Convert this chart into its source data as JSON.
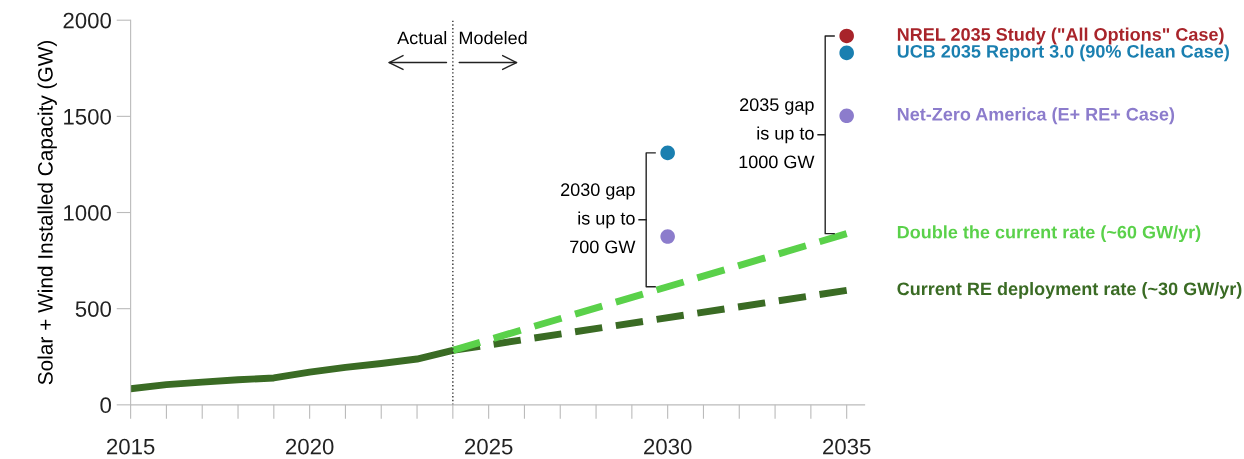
{
  "chart_data": {
    "type": "line",
    "ylabel": "Solar + Wind Installed Capacity (GW)",
    "xlim": [
      2015,
      2035.5
    ],
    "ylim": [
      0,
      2000
    ],
    "xticks": [
      2015,
      {
        "value": 2016,
        "label": null
      },
      {
        "value": 2017,
        "label": null
      },
      {
        "value": 2018,
        "label": null
      },
      {
        "value": 2019,
        "label": null
      },
      2020,
      {
        "value": 2021,
        "label": null
      },
      {
        "value": 2022,
        "label": null
      },
      {
        "value": 2023,
        "label": null
      },
      {
        "value": 2024,
        "label": null
      },
      2025,
      {
        "value": 2026,
        "label": null
      },
      {
        "value": 2027,
        "label": null
      },
      {
        "value": 2028,
        "label": null
      },
      {
        "value": 2029,
        "label": null
      },
      2030,
      {
        "value": 2031,
        "label": null
      },
      {
        "value": 2032,
        "label": null
      },
      {
        "value": 2033,
        "label": null
      },
      {
        "value": 2034,
        "label": null
      },
      2035
    ],
    "yticks": [
      0,
      500,
      1000,
      1500,
      2000
    ],
    "grid": false,
    "series": [
      {
        "color": "#3a6b24",
        "line_style": "solid",
        "x": [
          2015,
          2016,
          2017,
          2018,
          2019,
          2020,
          2021,
          2022,
          2023,
          2024
        ],
        "values": [
          84,
          105,
          118,
          130,
          140,
          170,
          195,
          215,
          238,
          283
        ]
      },
      {
        "name": "Current RE deployment rate (~30 GW/yr)",
        "color": "#3a6b24",
        "line_style": "dashed",
        "x": [
          2024,
          2035
        ],
        "values": [
          283,
          595
        ]
      },
      {
        "name": "Double the current rate (~60 GW/yr)",
        "color": "#5ad14a",
        "line_style": "dashed",
        "x": [
          2024,
          2035
        ],
        "values": [
          283,
          890
        ]
      },
      {
        "type": "scatter",
        "name": "NREL 2035 Study (\"All Options\" Case)",
        "color": "#a8242a",
        "marker": "circle",
        "x": [
          2035
        ],
        "values": [
          1918
        ]
      },
      {
        "type": "scatter",
        "name": "UCB 2035 Report 3.0 (90% Clean Case)",
        "color": "#1a7fb0",
        "marker": "circle",
        "x": [
          2030,
          2035
        ],
        "values": [
          1310,
          1830
        ]
      },
      {
        "type": "scatter",
        "name": "Net-Zero America (E+ RE+ Case)",
        "color": "#8c7ccc",
        "marker": "circle",
        "x": [
          2030,
          2035
        ],
        "values": [
          875,
          1503
        ]
      }
    ],
    "ref_lines": [
      {
        "axis": "x",
        "value": 2024,
        "color": "#333333",
        "line_style": "dotted"
      }
    ],
    "annotations": [
      "Actual",
      "Modeled",
      "2030 gap\nis up to\n700 GW",
      "2035 gap\nis up to\n1000 GW"
    ]
  }
}
